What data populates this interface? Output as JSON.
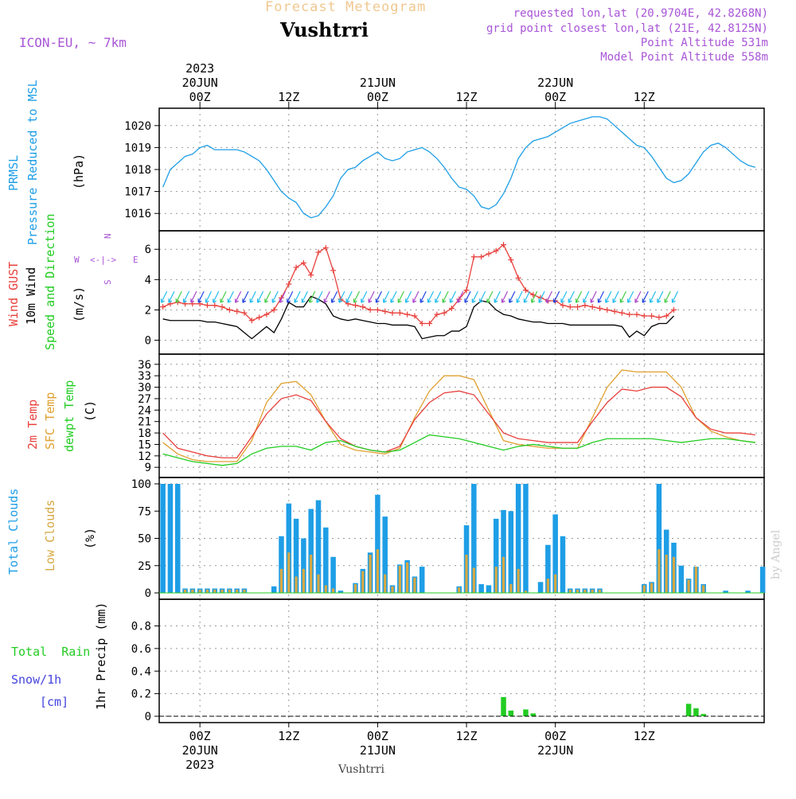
{
  "header": {
    "title": "Forecast Meteogram",
    "location": "Vushtrri",
    "model": "ICON-EU, ~ 7km",
    "requested": "requested lon,lat (20.9704E, 42.8268N)",
    "gridpoint": "grid point closest lon,lat (21E, 42.8125N)",
    "point_alt": "Point Altitude 531m",
    "model_alt": "Model Point Altitude 558m",
    "footer": "Vushtrri",
    "credit": "by Angel"
  },
  "colors": {
    "pressure": "#1e9ee6",
    "gust": "#e8403c",
    "wind": "#000000",
    "t2m": "#e8403c",
    "sfc": "#e0a030",
    "dew": "#22cc22",
    "total_cloud": "#1e9ee6",
    "low_cloud": "#d6a843",
    "rain": "#22cc22",
    "snow": "#4444dd",
    "purple": "#a855d6",
    "title": "#f0c890"
  },
  "time_axis": {
    "top_ticks": [
      {
        "label": "00Z",
        "day": "20JUN",
        "year": "2023"
      },
      {
        "label": "12Z",
        "day": "",
        "year": ""
      },
      {
        "label": "00Z",
        "day": "21JUN",
        "year": ""
      },
      {
        "label": "12Z",
        "day": "",
        "year": ""
      },
      {
        "label": "00Z",
        "day": "22JUN",
        "year": ""
      },
      {
        "label": "12Z",
        "day": "",
        "year": ""
      }
    ],
    "bottom_ticks": [
      {
        "label": "00Z",
        "day": "20JUN",
        "year": "2023"
      },
      {
        "label": "12Z",
        "day": "",
        "year": ""
      },
      {
        "label": "00Z",
        "day": "21JUN",
        "year": ""
      },
      {
        "label": "12Z",
        "day": "",
        "year": ""
      },
      {
        "label": "00Z",
        "day": "22JUN",
        "year": ""
      },
      {
        "label": "12Z",
        "day": "",
        "year": ""
      }
    ]
  },
  "panels": {
    "pressure": {
      "label1": "PRMSL",
      "label2": "Pressure Reduced to MSL",
      "unit": "(hPa)"
    },
    "wind": {
      "label_gust": "Wind GUST",
      "label_wind": "10m Wind",
      "label_dir": "Speed and Direction",
      "unit": "(m/s)",
      "compass_n": "N",
      "compass_s": "S",
      "compass_w": "W",
      "compass_e": "E",
      "compass_arrows": "<-|->"
    },
    "temp": {
      "label_t2m": "2m Temp",
      "label_sfc": "SFC Temp",
      "label_dew": "dewpt Temp",
      "unit": "(C)"
    },
    "cloud": {
      "label_total": "Total Clouds",
      "label_low": "Low Clouds",
      "unit": "(%)"
    },
    "precip": {
      "label_rain": "Total  Rain",
      "label_snow": "Snow/1h",
      "label_cm": "[cm]",
      "ylabel": "1hr Precip (mm)"
    }
  },
  "chart_data": [
    {
      "type": "line",
      "name": "pressure",
      "ylim": [
        1015.5,
        1020.5
      ],
      "yticks": [
        1016,
        1017,
        1018,
        1019,
        1020
      ],
      "x": [
        -5,
        -4,
        -3,
        -2,
        -1,
        0,
        1,
        2,
        3,
        4,
        5,
        6,
        7,
        8,
        9,
        10,
        11,
        12,
        13,
        14,
        15,
        16,
        17,
        18,
        19,
        20,
        21,
        22,
        23,
        24,
        25,
        26,
        27,
        28,
        29,
        30,
        31,
        32,
        33,
        34,
        35,
        36,
        37,
        38,
        39,
        40,
        41,
        42,
        43,
        44,
        45,
        46,
        47,
        48,
        49,
        50,
        51,
        52,
        53,
        54,
        55,
        56,
        57,
        58,
        59,
        60,
        61,
        62,
        63,
        64,
        65,
        66,
        67,
        68,
        69,
        70,
        71,
        72,
        73,
        74,
        75
      ],
      "series": [
        {
          "values": [
            1017.2,
            1018.0,
            1018.3,
            1018.6,
            1018.7,
            1019.0,
            1019.1,
            1018.9,
            1018.9,
            1018.9,
            1018.9,
            1018.8,
            1018.6,
            1018.4,
            1018.0,
            1017.5,
            1017.0,
            1016.7,
            1016.5,
            1016.0,
            1015.8,
            1015.9,
            1016.3,
            1016.8,
            1017.6,
            1018.0,
            1018.1,
            1018.4,
            1018.6,
            1018.8,
            1018.5,
            1018.4,
            1018.5,
            1018.8,
            1018.9,
            1019.0,
            1018.8,
            1018.5,
            1018.1,
            1017.6,
            1017.2,
            1017.1,
            1016.8,
            1016.3,
            1016.2,
            1016.4,
            1016.9,
            1017.6,
            1018.5,
            1019.0,
            1019.3,
            1019.4,
            1019.5,
            1019.7,
            1019.9,
            1020.1,
            1020.2,
            1020.3,
            1020.4,
            1020.4,
            1020.3,
            1020.0,
            1019.7,
            1019.4,
            1019.1,
            1019.0,
            1018.6,
            1018.1,
            1017.6,
            1017.4,
            1017.5,
            1017.8,
            1018.3,
            1018.8,
            1019.1,
            1019.2,
            1019.0,
            1018.7,
            1018.4,
            1018.2,
            1018.1
          ]
        }
      ]
    },
    {
      "type": "line",
      "name": "wind",
      "ylim": [
        -0.5,
        6.8
      ],
      "yticks": [
        0,
        2,
        4,
        6
      ],
      "x": [
        -5,
        -4,
        -3,
        -2,
        -1,
        0,
        1,
        2,
        3,
        4,
        5,
        6,
        7,
        8,
        9,
        10,
        11,
        12,
        13,
        14,
        15,
        16,
        17,
        18,
        19,
        20,
        21,
        22,
        23,
        24,
        25,
        26,
        27,
        28,
        29,
        30,
        31,
        32,
        33,
        34,
        35,
        36,
        37,
        38,
        39,
        40,
        41,
        42,
        43,
        44,
        45,
        46,
        47,
        48,
        49,
        50,
        51,
        52,
        53,
        54,
        55,
        56,
        57,
        58,
        59,
        60,
        61,
        62,
        63,
        64
      ],
      "series": [
        {
          "name": "Wind GUST",
          "values": [
            2.2,
            2.4,
            2.5,
            2.4,
            2.4,
            2.4,
            2.3,
            2.3,
            2.2,
            2.0,
            1.9,
            1.8,
            1.3,
            1.5,
            1.7,
            2.0,
            2.8,
            3.7,
            4.8,
            5.1,
            4.3,
            5.8,
            6.1,
            4.6,
            2.7,
            2.4,
            2.3,
            2.2,
            2.0,
            2.0,
            1.9,
            1.8,
            1.8,
            1.7,
            1.6,
            1.1,
            1.1,
            1.7,
            1.8,
            2.1,
            2.7,
            3.3,
            5.5,
            5.5,
            5.7,
            5.9,
            6.3,
            5.3,
            4.1,
            3.3,
            3.0,
            2.8,
            2.6,
            2.6,
            2.3,
            2.2,
            2.2,
            2.3,
            2.2,
            2.1,
            2.0,
            1.9,
            1.8,
            1.7,
            1.7,
            1.6,
            1.6,
            1.5,
            1.6,
            2.0
          ]
        },
        {
          "name": "10m Wind",
          "values": [
            1.4,
            1.3,
            1.3,
            1.3,
            1.3,
            1.3,
            1.2,
            1.2,
            1.1,
            1.0,
            0.9,
            0.5,
            0.1,
            0.5,
            0.9,
            0.5,
            1.4,
            2.5,
            2.2,
            2.2,
            2.9,
            2.7,
            2.4,
            1.6,
            1.4,
            1.3,
            1.4,
            1.3,
            1.2,
            1.1,
            1.1,
            1.0,
            1.0,
            1.0,
            0.9,
            0.1,
            0.2,
            0.3,
            0.3,
            0.6,
            0.6,
            0.9,
            2.2,
            2.6,
            2.5,
            2.0,
            1.7,
            1.6,
            1.4,
            1.3,
            1.2,
            1.2,
            1.1,
            1.1,
            1.1,
            1.0,
            1.0,
            1.0,
            1.0,
            1.0,
            1.0,
            1.0,
            0.9,
            0.2,
            0.6,
            0.3,
            0.9,
            1.1,
            1.1,
            1.6
          ]
        }
      ]
    },
    {
      "type": "line",
      "name": "temperature",
      "ylim": [
        8,
        37
      ],
      "yticks": [
        9,
        12,
        15,
        18,
        21,
        24,
        27,
        30,
        33,
        36
      ],
      "x": [
        -5,
        -3,
        -1,
        1,
        3,
        5,
        7,
        9,
        11,
        13,
        15,
        17,
        19,
        21,
        23,
        25,
        27,
        29,
        31,
        33,
        35,
        37,
        39,
        41,
        43,
        45,
        47,
        49,
        51,
        53,
        55,
        57,
        59,
        61,
        63,
        65,
        67,
        69,
        71,
        73,
        75
      ],
      "series": [
        {
          "name": "2m Temp",
          "values": [
            18.0,
            14.0,
            13.0,
            12.0,
            11.5,
            11.5,
            17.0,
            23.0,
            27.0,
            28.0,
            26.5,
            21.0,
            16.5,
            14.5,
            13.5,
            13.0,
            14.5,
            21.5,
            26.0,
            28.5,
            29.0,
            28.0,
            23.0,
            18.0,
            16.5,
            16.0,
            15.5,
            15.5,
            15.5,
            21.0,
            26.0,
            29.5,
            29.0,
            30.0,
            30.0,
            27.5,
            22.0,
            19.0,
            18.0,
            18.0,
            17.5
          ]
        },
        {
          "name": "SFC Temp",
          "values": [
            15.5,
            12.5,
            11.0,
            10.5,
            10.5,
            10.5,
            16.0,
            26.0,
            31.0,
            31.5,
            28.0,
            21.0,
            15.0,
            13.5,
            13.0,
            12.5,
            14.0,
            22.0,
            29.0,
            33.0,
            33.0,
            32.0,
            24.0,
            16.0,
            15.0,
            14.5,
            14.0,
            14.0,
            14.0,
            22.0,
            30.0,
            34.5,
            34.0,
            34.0,
            34.0,
            30.0,
            22.0,
            18.5,
            17.0,
            16.0,
            15.5
          ]
        },
        {
          "name": "dewpt Temp",
          "values": [
            12.5,
            11.5,
            10.5,
            10.0,
            9.5,
            10.0,
            12.5,
            14.0,
            14.5,
            14.5,
            13.5,
            15.5,
            16.0,
            14.5,
            13.5,
            13.0,
            13.5,
            15.5,
            17.5,
            17.0,
            16.5,
            15.5,
            14.5,
            13.5,
            14.5,
            15.0,
            14.5,
            14.0,
            14.0,
            15.5,
            16.5,
            16.5,
            16.5,
            16.5,
            16.0,
            15.5,
            16.0,
            16.5,
            16.5,
            16.0,
            15.5
          ]
        }
      ]
    },
    {
      "type": "bar",
      "name": "clouds",
      "ylim": [
        0,
        100
      ],
      "yticks": [
        0,
        25,
        50,
        75,
        100
      ],
      "x": [
        -5,
        -4,
        -3,
        -2,
        -1,
        0,
        1,
        2,
        3,
        4,
        5,
        6,
        7,
        8,
        9,
        10,
        11,
        12,
        13,
        14,
        15,
        16,
        17,
        18,
        19,
        20,
        21,
        22,
        23,
        24,
        25,
        26,
        27,
        28,
        29,
        30,
        31,
        32,
        33,
        34,
        35,
        36,
        37,
        38,
        39,
        40,
        41,
        42,
        43,
        44,
        45,
        46,
        47,
        48,
        49,
        50,
        51,
        52,
        53,
        54,
        55,
        56,
        57,
        58,
        59,
        60,
        61,
        62,
        63,
        64,
        65,
        66,
        67,
        68,
        69,
        70,
        71,
        72,
        73,
        74,
        75,
        76
      ],
      "series": [
        {
          "name": "Total Clouds",
          "values": [
            100,
            100,
            100,
            4,
            4,
            4,
            4,
            4,
            4,
            4,
            4,
            4,
            0,
            0,
            0,
            6,
            52,
            82,
            68,
            50,
            77,
            85,
            60,
            33,
            2,
            0,
            9,
            22,
            37,
            90,
            70,
            7,
            26,
            30,
            15,
            24,
            0,
            0,
            0,
            0,
            6,
            62,
            100,
            8,
            7,
            68,
            76,
            75,
            100,
            100,
            0,
            10,
            44,
            72,
            52,
            4,
            4,
            4,
            4,
            4,
            0,
            0,
            0,
            0,
            0,
            8,
            10,
            100,
            58,
            46,
            25,
            13,
            24,
            8,
            0,
            0,
            2,
            0,
            0,
            2,
            0,
            24
          ]
        },
        {
          "name": "Low Clouds",
          "values": [
            0,
            0,
            0,
            3,
            3,
            3,
            3,
            3,
            3,
            3,
            3,
            3,
            0,
            0,
            0,
            0,
            22,
            37,
            15,
            22,
            35,
            17,
            7,
            4,
            0,
            0,
            8,
            20,
            35,
            40,
            17,
            6,
            25,
            28,
            14,
            0,
            0,
            0,
            0,
            0,
            5,
            35,
            23,
            0,
            0,
            24,
            33,
            8,
            22,
            2,
            0,
            0,
            13,
            17,
            0,
            3,
            3,
            3,
            3,
            3,
            0,
            0,
            0,
            0,
            0,
            7,
            9,
            40,
            35,
            33,
            0,
            12,
            24,
            7,
            0,
            0,
            0,
            0,
            0,
            0,
            0,
            0
          ]
        }
      ]
    },
    {
      "type": "bar",
      "name": "precip",
      "ylim": [
        0,
        0.98
      ],
      "yticks": [
        0,
        0.2,
        0.4,
        0.6,
        0.8
      ],
      "x": [
        41,
        42,
        43,
        44,
        45,
        46,
        66,
        67,
        68
      ],
      "series": [
        {
          "name": "Total  Rain",
          "values": [
            0.17,
            0.05,
            0.0,
            0.06,
            0.025,
            0.0,
            0.11,
            0.07,
            0.02
          ]
        }
      ]
    }
  ]
}
